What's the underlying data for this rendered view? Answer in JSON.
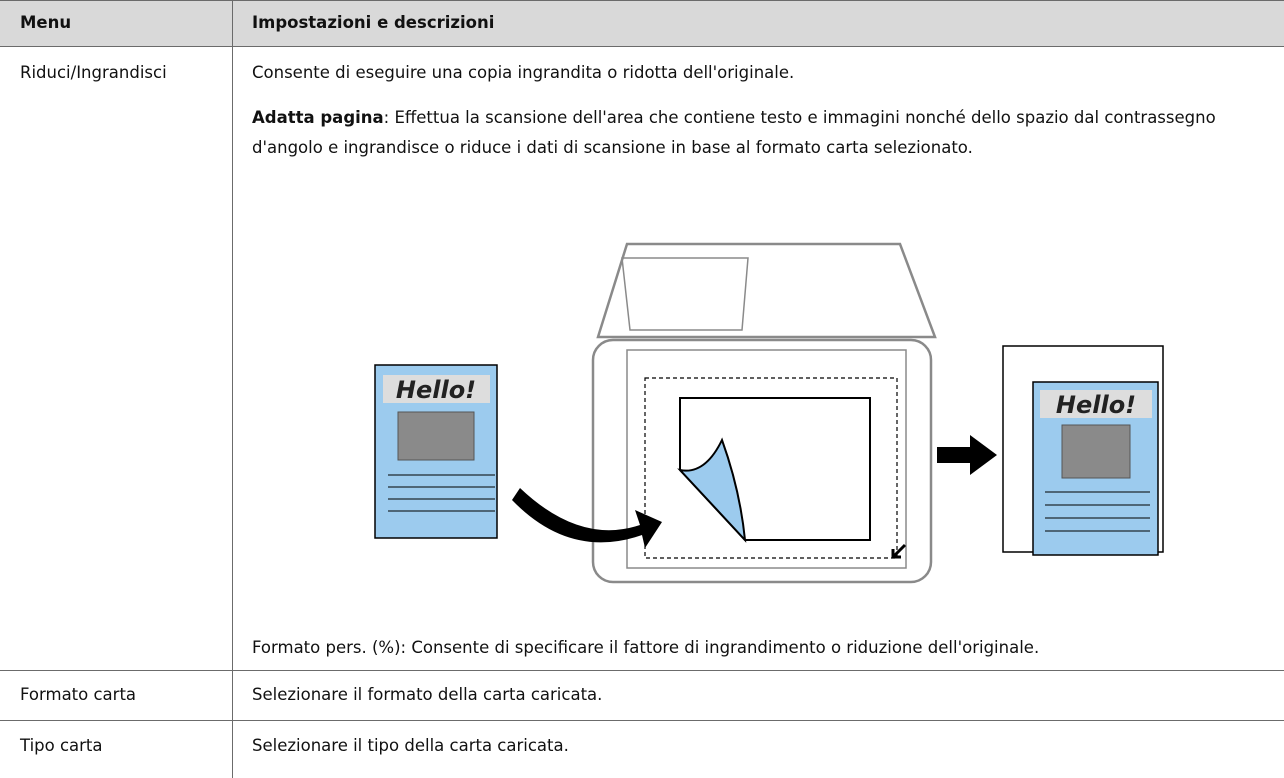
{
  "table": {
    "header": [
      "Menu",
      "Impostazioni e descrizioni"
    ],
    "rows": [
      {
        "menu": "Riduci/Ingrandisci",
        "description": "Consente di eseguire una copia ingrandita o ridotta dell'originale.",
        "option_label": "Adatta pagina",
        "option_text": ": Effettua la scansione dell'area che contiene testo e immagini nonché dello spazio dal contrassegno d'angolo e ingrandisce o riduce i dati di scansione in base al formato carta selezionato.",
        "illustration": {
          "original_text": "Hello!",
          "result_text": "Hello!"
        },
        "footer": "Formato pers. (%): Consente di specificare il fattore di ingrandimento o riduzione dell'originale."
      },
      {
        "menu": "Formato carta",
        "description": "Selezionare il formato della carta caricata."
      },
      {
        "menu": "Tipo carta",
        "description": "Selezionare il tipo della carta caricata."
      }
    ]
  }
}
